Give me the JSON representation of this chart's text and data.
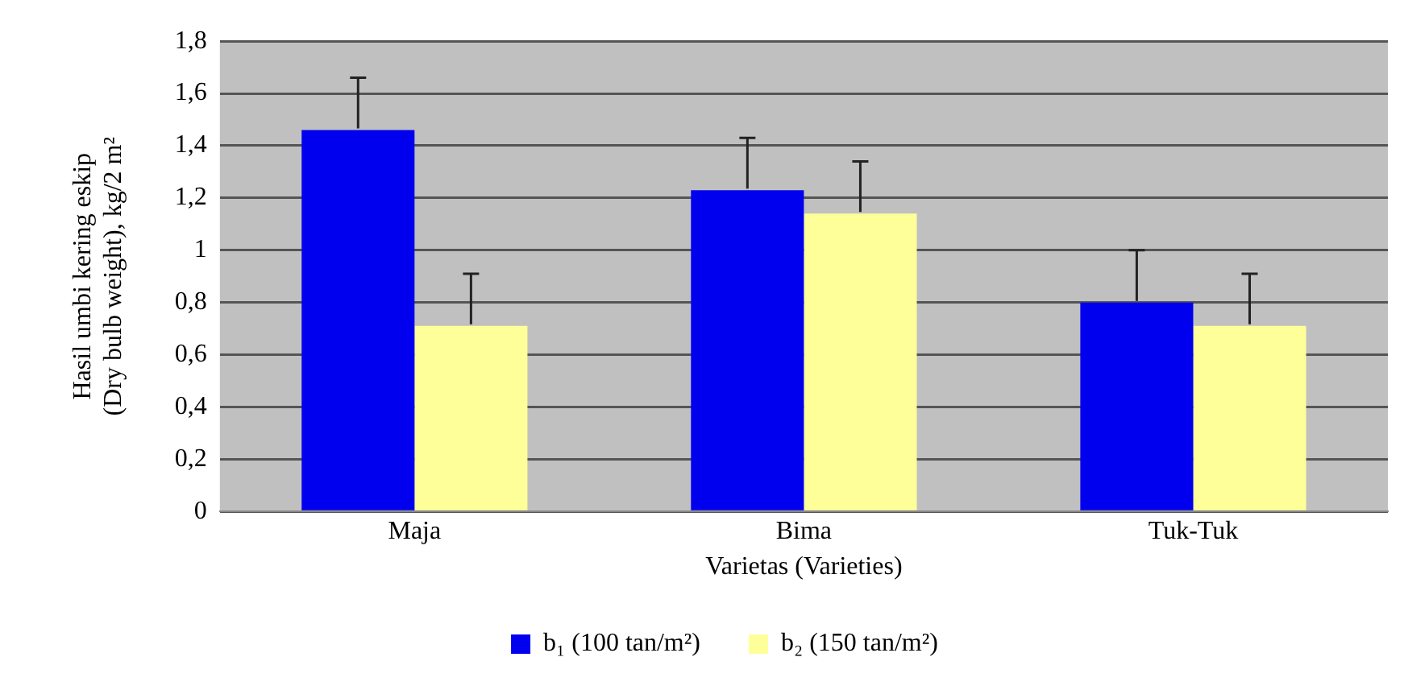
{
  "chart_data": {
    "type": "bar",
    "ylabel": "Hasil umbi kering eskip\n(Dry bulb weight), kg/2 m²",
    "xlabel": "Varietas (Varieties)",
    "categories": [
      "Maja",
      "Bima",
      "Tuk-Tuk"
    ],
    "series": [
      {
        "name": "b₁ (100 tan/m²)",
        "color": "#0000ee",
        "values": [
          1.46,
          1.23,
          0.8
        ],
        "errors": [
          [
            1.46,
            1.66
          ],
          [
            1.23,
            1.43
          ],
          [
            0.8,
            1.0
          ]
        ]
      },
      {
        "name": "b₂ (150 tan/m²)",
        "color": "#ffff99",
        "values": [
          0.71,
          1.14,
          0.71
        ],
        "errors": [
          [
            0.71,
            0.91
          ],
          [
            1.14,
            1.34
          ],
          [
            0.71,
            0.91
          ]
        ]
      }
    ],
    "ylim": [
      0,
      1.8
    ],
    "yticks": [
      0,
      {
        "value": 0.2,
        "label": "0,2"
      },
      {
        "value": 0.4,
        "label": "0,4"
      },
      {
        "value": 0.6,
        "label": "0,6"
      },
      {
        "value": 0.8,
        "label": "0,8"
      },
      1,
      {
        "value": 1.2,
        "label": "1,2"
      },
      {
        "value": 1.4,
        "label": "1,4"
      },
      {
        "value": 1.6,
        "label": "1,6"
      },
      {
        "value": 1.8,
        "label": "1,8"
      }
    ],
    "grid": "y",
    "legend": "bottom"
  }
}
